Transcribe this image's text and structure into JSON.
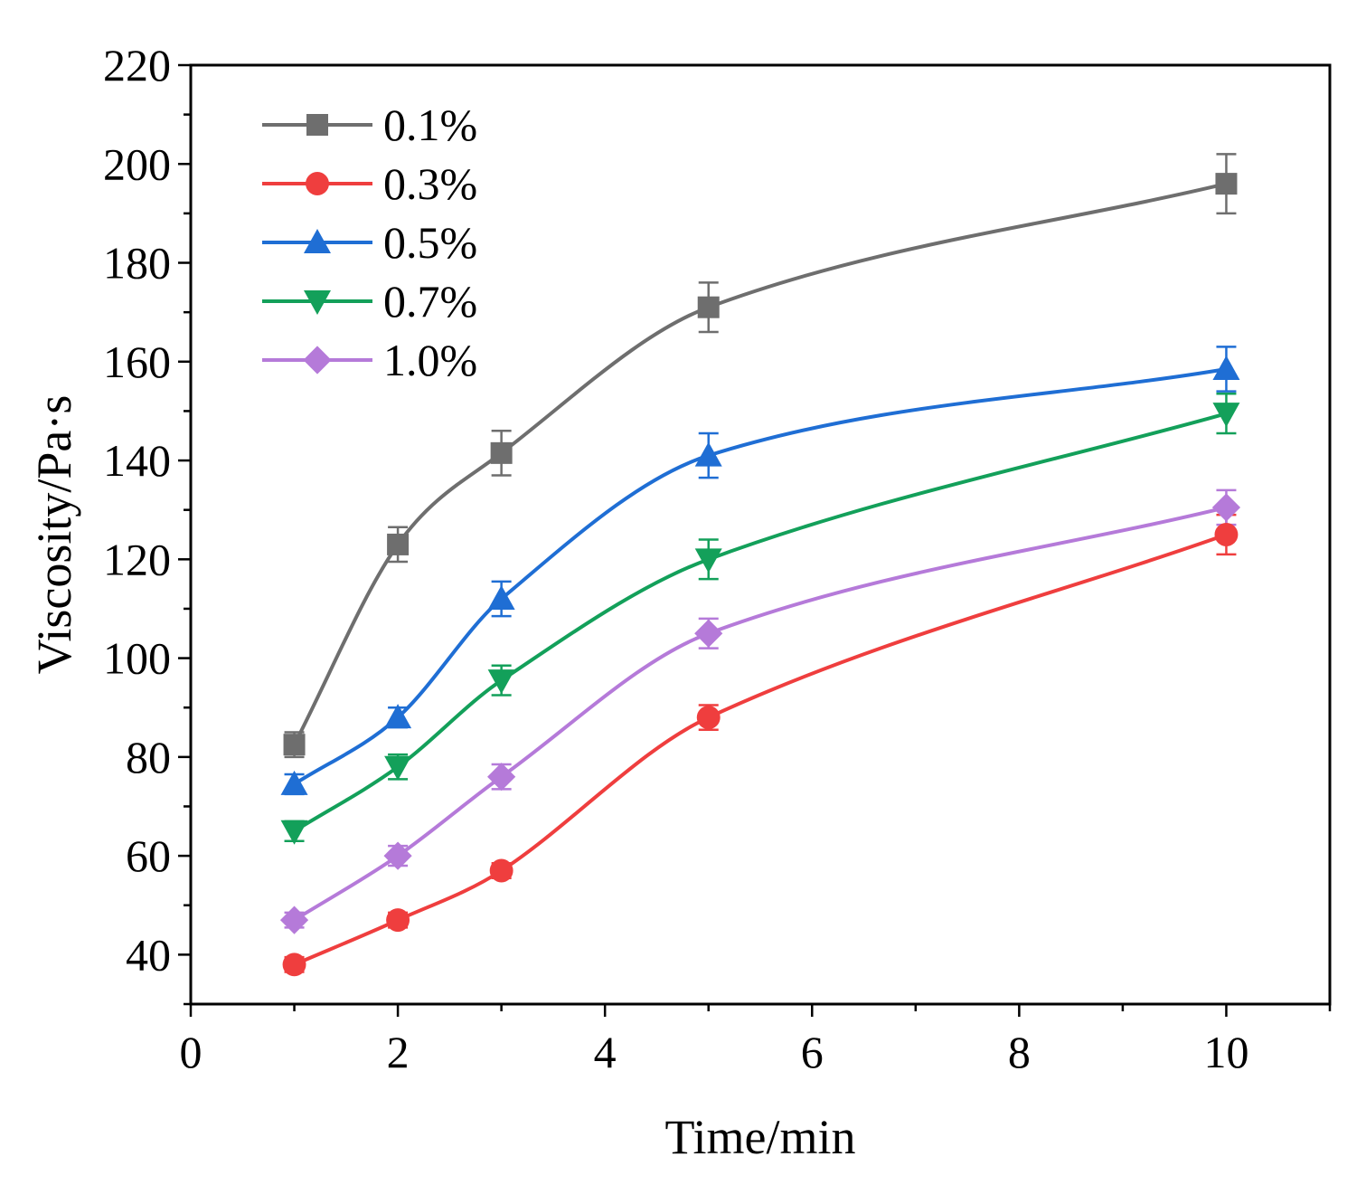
{
  "chart_data": {
    "type": "line",
    "title": "",
    "xlabel": "Time/min",
    "ylabel": "Viscosity/Pa·s",
    "xlim": [
      0,
      11
    ],
    "ylim": [
      30,
      220
    ],
    "x_ticks": [
      0,
      2,
      4,
      6,
      8,
      10
    ],
    "y_ticks": [
      40,
      60,
      80,
      100,
      120,
      140,
      160,
      180,
      200,
      220
    ],
    "grid": false,
    "legend_position": "top-left",
    "x": [
      1,
      2,
      3,
      5,
      10
    ],
    "series": [
      {
        "name": "0.1%",
        "color": "#6e6e6e",
        "marker": "square",
        "values": [
          82.5,
          123,
          141.5,
          171,
          196
        ],
        "errors": [
          2.5,
          3.5,
          4.5,
          5,
          6
        ]
      },
      {
        "name": "0.3%",
        "color": "#ef3e3e",
        "marker": "circle",
        "values": [
          38,
          47,
          57,
          88,
          125
        ],
        "errors": [
          1.5,
          1.5,
          1.5,
          2.5,
          4
        ]
      },
      {
        "name": "0.5%",
        "color": "#1f6ed4",
        "marker": "triangle-up",
        "values": [
          74.5,
          88,
          112,
          141,
          158.5
        ],
        "errors": [
          2,
          2,
          3.5,
          4.5,
          4.5
        ]
      },
      {
        "name": "0.7%",
        "color": "#13a05a",
        "marker": "triangle-down",
        "values": [
          65,
          78,
          95.5,
          120,
          149.5
        ],
        "errors": [
          2,
          2.5,
          3,
          4,
          4
        ]
      },
      {
        "name": "1.0%",
        "color": "#b57ad9",
        "marker": "diamond",
        "values": [
          47,
          60,
          76,
          105,
          130.5
        ],
        "errors": [
          1.5,
          2,
          2.5,
          3,
          3.5
        ]
      }
    ]
  }
}
